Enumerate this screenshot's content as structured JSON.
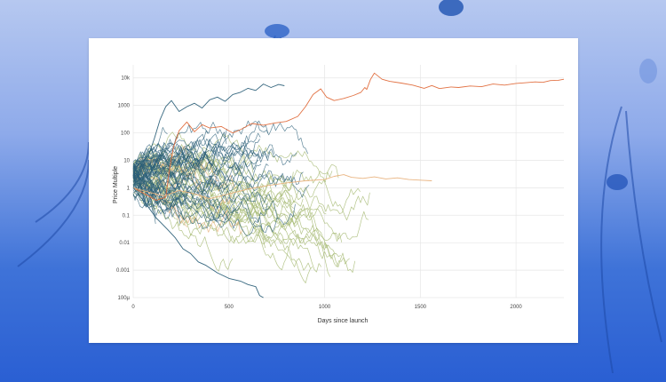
{
  "colors": {
    "teal": "#2b5f78",
    "teal_light": "#4a8398",
    "olive": "#a9bc78",
    "olive_light": "#c2cf98",
    "orange": "#e06a3a",
    "orange_light": "#e8b07a",
    "grid": "#e6e6e6",
    "card": "#ffffff"
  },
  "chart_data": {
    "type": "line",
    "xlabel": "Days since launch",
    "ylabel": "Price Multiple",
    "x_ticks": [
      "0",
      "500",
      "1000",
      "1500",
      "2000"
    ],
    "x_tick_values": [
      0,
      500,
      1000,
      1500,
      2000
    ],
    "y_ticks": [
      "10k",
      "1000",
      "100",
      "10",
      "1",
      "0.1",
      "0.01",
      "0.001",
      "100µ"
    ],
    "y_tick_values": [
      10000,
      1000,
      100,
      10,
      1,
      0.1,
      0.01,
      0.001,
      0.0001
    ],
    "x_range": [
      0,
      2250
    ],
    "y_range": [
      0.0001,
      30000
    ],
    "y_scale": "log",
    "grid": true,
    "legend": "none",
    "highlight_series": [
      {
        "color_key": "orange",
        "points": [
          [
            0,
            1
          ],
          [
            60,
            0.6
          ],
          [
            120,
            0.35
          ],
          [
            170,
            0.45
          ],
          [
            190,
            5
          ],
          [
            210,
            30
          ],
          [
            240,
            120
          ],
          [
            280,
            250
          ],
          [
            320,
            110
          ],
          [
            360,
            200
          ],
          [
            400,
            150
          ],
          [
            460,
            170
          ],
          [
            520,
            100
          ],
          [
            560,
            130
          ],
          [
            620,
            220
          ],
          [
            680,
            190
          ],
          [
            740,
            230
          ],
          [
            800,
            260
          ],
          [
            860,
            400
          ],
          [
            900,
            900
          ],
          [
            940,
            2500
          ],
          [
            980,
            4000
          ],
          [
            1010,
            2000
          ],
          [
            1050,
            1500
          ],
          [
            1100,
            1800
          ],
          [
            1150,
            2300
          ],
          [
            1190,
            3000
          ],
          [
            1210,
            4500
          ],
          [
            1220,
            3800
          ],
          [
            1240,
            9000
          ],
          [
            1260,
            15000
          ],
          [
            1300,
            9000
          ],
          [
            1340,
            7500
          ],
          [
            1400,
            6500
          ],
          [
            1460,
            5500
          ],
          [
            1520,
            4200
          ],
          [
            1560,
            5300
          ],
          [
            1600,
            4100
          ],
          [
            1660,
            4700
          ],
          [
            1700,
            4500
          ],
          [
            1760,
            5100
          ],
          [
            1820,
            4800
          ],
          [
            1880,
            6000
          ],
          [
            1940,
            5500
          ],
          [
            2000,
            6300
          ],
          [
            2060,
            6800
          ],
          [
            2100,
            7200
          ],
          [
            2140,
            6900
          ],
          [
            2180,
            8000
          ],
          [
            2220,
            8200
          ],
          [
            2250,
            9000
          ]
        ]
      },
      {
        "color_key": "orange_light",
        "points": [
          [
            0,
            1
          ],
          [
            80,
            0.7
          ],
          [
            160,
            0.5
          ],
          [
            240,
            0.8
          ],
          [
            320,
            0.6
          ],
          [
            400,
            0.4
          ],
          [
            500,
            0.6
          ],
          [
            600,
            0.9
          ],
          [
            700,
            1.2
          ],
          [
            800,
            1.5
          ],
          [
            900,
            1.8
          ],
          [
            1000,
            2
          ],
          [
            1050,
            2.6
          ],
          [
            1100,
            3
          ],
          [
            1140,
            2.4
          ],
          [
            1200,
            2.2
          ],
          [
            1260,
            2.5
          ],
          [
            1320,
            2.1
          ],
          [
            1380,
            2.3
          ],
          [
            1440,
            2
          ],
          [
            1500,
            1.9
          ],
          [
            1560,
            1.8
          ]
        ]
      },
      {
        "color_key": "teal",
        "points": [
          [
            0,
            5
          ],
          [
            40,
            8
          ],
          [
            80,
            15
          ],
          [
            110,
            60
          ],
          [
            140,
            300
          ],
          [
            170,
            900
          ],
          [
            200,
            1500
          ],
          [
            240,
            600
          ],
          [
            280,
            900
          ],
          [
            320,
            1200
          ],
          [
            360,
            800
          ],
          [
            400,
            1600
          ],
          [
            440,
            2000
          ],
          [
            480,
            1400
          ],
          [
            520,
            2500
          ],
          [
            560,
            3000
          ],
          [
            600,
            4200
          ],
          [
            640,
            3500
          ],
          [
            680,
            6000
          ],
          [
            720,
            4500
          ],
          [
            760,
            5800
          ],
          [
            790,
            5200
          ]
        ]
      },
      {
        "color_key": "teal",
        "points": [
          [
            0,
            1
          ],
          [
            60,
            0.3
          ],
          [
            120,
            0.08
          ],
          [
            180,
            0.03
          ],
          [
            220,
            0.015
          ],
          [
            260,
            0.006
          ],
          [
            300,
            0.004
          ],
          [
            340,
            0.002
          ],
          [
            380,
            0.0015
          ],
          [
            440,
            0.0008
          ],
          [
            500,
            0.0005
          ],
          [
            560,
            0.0004
          ],
          [
            600,
            0.0003
          ],
          [
            640,
            0.00025
          ],
          [
            660,
            0.00012
          ],
          [
            680,
            0.0001
          ]
        ]
      }
    ],
    "bundle_series": {
      "teal": {
        "count": 60,
        "max_days": [
          80,
          950
        ],
        "end_range": [
          0.03,
          150
        ]
      },
      "olive": {
        "count": 32,
        "max_days": [
          400,
          1280
        ],
        "end_range": [
          0.0009,
          5
        ]
      },
      "orange_light": {
        "count": 6,
        "max_days": [
          250,
          700
        ],
        "end_range": [
          0.02,
          2
        ]
      }
    }
  }
}
